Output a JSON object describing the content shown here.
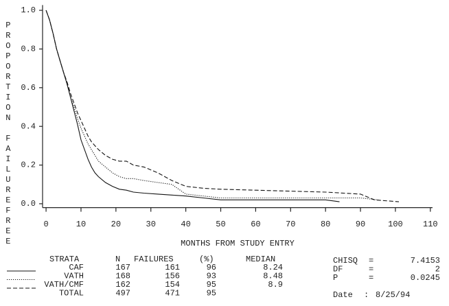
{
  "chart_data": {
    "type": "line",
    "xlabel": "MONTHS FROM STUDY ENTRY",
    "ylabel": "PROPORTION FAILUREFREE",
    "xlim": [
      -1,
      112
    ],
    "ylim": [
      -0.02,
      1.02
    ],
    "xticks": [
      0,
      10,
      20,
      30,
      40,
      50,
      60,
      70,
      80,
      90,
      100,
      110
    ],
    "yticks": [
      {
        "value": 0,
        "label": "0.0"
      },
      0.2,
      0.4,
      0.6,
      0.8,
      {
        "value": 1,
        "label": "1.0"
      }
    ],
    "series": [
      {
        "name": "CAF",
        "color": "#111111",
        "dash": "solid",
        "x": [
          0,
          1,
          2,
          3,
          4,
          5,
          6,
          7,
          8,
          9,
          10,
          11,
          12,
          13,
          14,
          15,
          17,
          19,
          21,
          23,
          25,
          28,
          32,
          36,
          40,
          45,
          50,
          60,
          70,
          80,
          84
        ],
        "values": [
          1,
          0.95,
          0.88,
          0.8,
          0.74,
          0.68,
          0.62,
          0.55,
          0.48,
          0.41,
          0.33,
          0.28,
          0.23,
          0.19,
          0.16,
          0.14,
          0.11,
          0.09,
          0.075,
          0.07,
          0.06,
          0.055,
          0.05,
          0.045,
          0.04,
          0.03,
          0.02,
          0.02,
          0.02,
          0.02,
          0.01
        ]
      },
      {
        "name": "VATH",
        "color": "#111111",
        "dash": "dotted",
        "x": [
          0,
          1,
          2,
          3,
          4,
          5,
          6,
          7,
          8,
          9,
          10,
          11,
          12,
          13,
          14,
          15,
          17,
          19,
          21,
          23,
          25,
          28,
          32,
          36,
          40,
          45,
          50,
          60,
          70,
          80,
          90,
          95
        ],
        "values": [
          1,
          0.95,
          0.88,
          0.8,
          0.74,
          0.68,
          0.62,
          0.55,
          0.5,
          0.44,
          0.39,
          0.35,
          0.31,
          0.28,
          0.25,
          0.22,
          0.19,
          0.16,
          0.14,
          0.13,
          0.13,
          0.12,
          0.11,
          0.1,
          0.05,
          0.04,
          0.03,
          0.03,
          0.03,
          0.03,
          0.03,
          0.02
        ]
      },
      {
        "name": "VATH/CMF",
        "color": "#111111",
        "dash": "dashed",
        "x": [
          0,
          1,
          2,
          3,
          4,
          5,
          6,
          7,
          8,
          9,
          10,
          11,
          12,
          13,
          14,
          15,
          17,
          19,
          21,
          23,
          25,
          28,
          32,
          36,
          40,
          45,
          50,
          60,
          70,
          80,
          90,
          94,
          101
        ],
        "values": [
          1,
          0.95,
          0.88,
          0.8,
          0.74,
          0.68,
          0.63,
          0.57,
          0.52,
          0.47,
          0.43,
          0.39,
          0.35,
          0.32,
          0.3,
          0.28,
          0.25,
          0.23,
          0.22,
          0.22,
          0.2,
          0.19,
          0.16,
          0.12,
          0.09,
          0.08,
          0.075,
          0.07,
          0.065,
          0.06,
          0.05,
          0.02,
          0.01
        ]
      }
    ],
    "summary": {
      "columns": [
        "STRATA",
        "N",
        "FAILURES",
        "(%)",
        "MEDIAN"
      ],
      "rows": [
        {
          "n": 167,
          "failures": 161,
          "pct": 96,
          "median": 8.24
        },
        {
          "n": 168,
          "failures": 156,
          "pct": 93,
          "median": 8.48
        },
        {
          "n": 162,
          "failures": 154,
          "pct": 95,
          "median": 8.9
        }
      ],
      "total": {
        "label": "TOTAL",
        "n": 497,
        "failures": 471,
        "pct": 95
      }
    },
    "stats": [
      {
        "label": "CHISQ",
        "sep": "=",
        "value": 7.4153
      },
      {
        "label": "DF",
        "sep": "=",
        "value": 2
      },
      {
        "label": "P",
        "sep": "=",
        "value": 0.0245
      }
    ],
    "date": {
      "label": "Date",
      "sep": ":",
      "value": "8/25/94"
    }
  }
}
